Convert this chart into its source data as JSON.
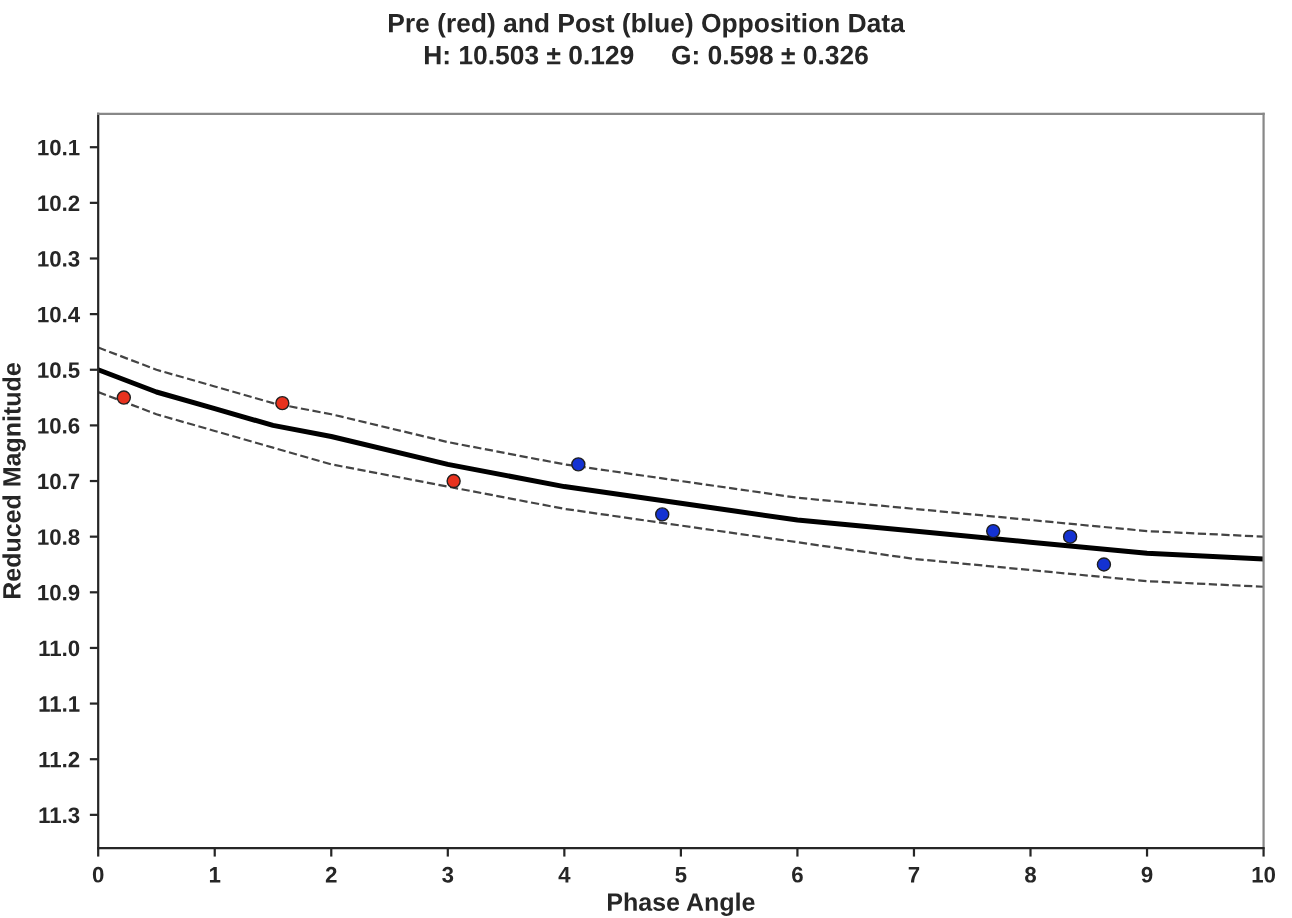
{
  "chart_data": {
    "type": "scatter",
    "title": "Pre (red) and Post (blue) Opposition Data",
    "subtitle": "H: 10.503 ± 0.129     G: 0.598 ± 0.326",
    "xlabel": "Phase Angle",
    "ylabel": "Reduced Magnitude",
    "series": [
      {
        "type": "line",
        "color": "#000000",
        "line_style": "solid",
        "x": [
          0,
          0.5,
          1,
          1.5,
          2,
          3,
          4,
          5,
          6,
          7,
          8,
          9,
          10
        ],
        "values": [
          10.5,
          10.54,
          10.57,
          10.6,
          10.62,
          10.67,
          10.71,
          10.74,
          10.77,
          10.79,
          10.81,
          10.83,
          10.84
        ]
      },
      {
        "type": "line",
        "color": "#444444",
        "line_style": "dashed",
        "x": [
          0,
          0.5,
          1,
          1.5,
          2,
          3,
          4,
          5,
          6,
          7,
          8,
          9,
          10
        ],
        "values": [
          10.46,
          10.5,
          10.53,
          10.56,
          10.58,
          10.63,
          10.67,
          10.7,
          10.73,
          10.75,
          10.77,
          10.79,
          10.8
        ]
      },
      {
        "type": "line",
        "color": "#444444",
        "line_style": "dashed",
        "x": [
          0,
          0.5,
          1,
          1.5,
          2,
          3,
          4,
          5,
          6,
          7,
          8,
          9,
          10
        ],
        "values": [
          10.54,
          10.58,
          10.61,
          10.64,
          10.67,
          10.71,
          10.75,
          10.78,
          10.81,
          10.84,
          10.86,
          10.88,
          10.89
        ]
      },
      {
        "color": "#e8321e",
        "marker": "circle",
        "x": [
          0.22,
          1.58,
          3.05
        ],
        "values": [
          10.55,
          10.56,
          10.7
        ]
      },
      {
        "color": "#1432d2",
        "marker": "circle",
        "x": [
          4.12,
          4.84,
          7.68,
          8.34,
          8.63
        ],
        "values": [
          10.67,
          10.76,
          10.79,
          10.8,
          10.85
        ]
      }
    ],
    "xlim": [
      0,
      10
    ],
    "xticks": [
      0,
      1,
      2,
      3,
      4,
      5,
      6,
      7,
      8,
      9,
      10
    ],
    "ylim": [
      11.36,
      10.04
    ],
    "yticks": [
      10.1,
      10.2,
      10.3,
      10.4,
      10.5,
      10.6,
      10.7,
      10.8,
      10.9,
      {
        "value": 11,
        "label": "11.0"
      },
      11.1,
      11.2,
      11.3
    ],
    "grid": false,
    "legend": false
  }
}
